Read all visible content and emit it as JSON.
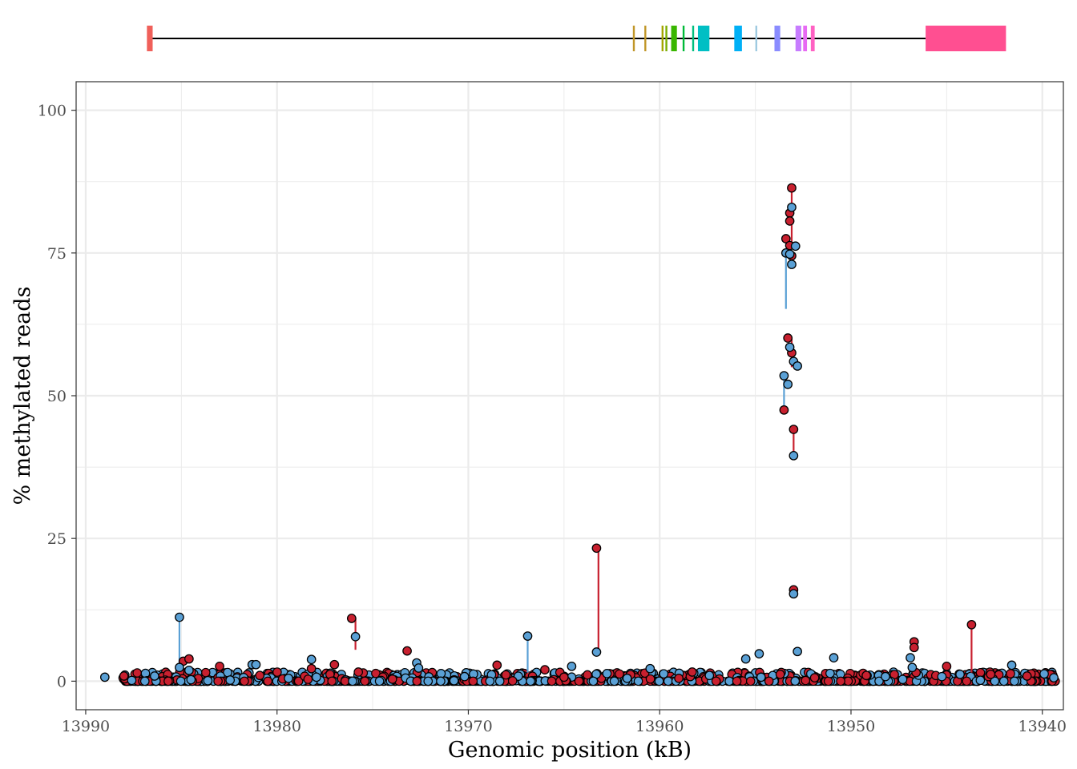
{
  "chart_data": {
    "type": "scatter",
    "title": "",
    "xlabel": "Genomic position (kB)",
    "ylabel": "% methylated reads",
    "xlim": [
      13990.5,
      13938.9
    ],
    "ylim": [
      -5,
      105
    ],
    "x_reversed": true,
    "x_ticks": [
      13990,
      13980,
      13970,
      13960,
      13950,
      13940
    ],
    "y_ticks": [
      0,
      25,
      50,
      75,
      100
    ],
    "grid": true,
    "legend": "none",
    "colors": {
      "red_series": "#c8202f",
      "blue_series": "#5aa0d5",
      "point_outline": "#000000",
      "gridline": "#ebebeb",
      "panel_border": "#333333"
    },
    "gene_track": {
      "backbone_x": [
        13986.5,
        13946.1
      ],
      "features": [
        {
          "x": [
            13986.8,
            13986.5
          ],
          "color": "#f0605a"
        },
        {
          "x": [
            13961.4,
            13961.3
          ],
          "color": "#c09628"
        },
        {
          "x": [
            13960.8,
            13960.7
          ],
          "color": "#c09628"
        },
        {
          "x": [
            13959.9,
            13959.8
          ],
          "color": "#a3a500"
        },
        {
          "x": [
            13959.7,
            13959.6
          ],
          "color": "#7aae00"
        },
        {
          "x": [
            13959.4,
            13959.1
          ],
          "color": "#39b600"
        },
        {
          "x": [
            13958.8,
            13958.7
          ],
          "color": "#00ba38"
        },
        {
          "x": [
            13958.3,
            13958.2
          ],
          "color": "#00bf7d"
        },
        {
          "x": [
            13958.0,
            13957.4
          ],
          "color": "#00bfc4"
        },
        {
          "x": [
            13956.1,
            13955.7
          ],
          "color": "#00b0f6"
        },
        {
          "x": [
            13955.0,
            13954.9
          ],
          "color": "#9ecae1"
        },
        {
          "x": [
            13954.0,
            13953.7
          ],
          "color": "#8a8cff"
        },
        {
          "x": [
            13952.9,
            13952.6
          ],
          "color": "#c77cff"
        },
        {
          "x": [
            13952.5,
            13952.3
          ],
          "color": "#e76bf3"
        },
        {
          "x": [
            13952.1,
            13951.9
          ],
          "color": "#ff61c3"
        },
        {
          "x": [
            13946.1,
            13941.9
          ],
          "color": "#ff4f91"
        }
      ]
    },
    "stems": [
      {
        "x": 13985.1,
        "from": 2.5,
        "to": 11.2,
        "color": "blue"
      },
      {
        "x": 13975.9,
        "from": 5.5,
        "to": 11.0,
        "color": "red"
      },
      {
        "x": 13966.9,
        "from": 1.5,
        "to": 7.8,
        "color": "blue"
      },
      {
        "x": 13963.2,
        "from": 5.1,
        "to": 23.3,
        "color": "red"
      },
      {
        "x": 13953.5,
        "from": 47.5,
        "to": 53.5,
        "color": "blue"
      },
      {
        "x": 13953.4,
        "from": 65.2,
        "to": 75.0,
        "color": "blue"
      },
      {
        "x": 13953.1,
        "from": 76.0,
        "to": 86.4,
        "color": "red"
      },
      {
        "x": 13953.1,
        "from": 55.0,
        "to": 60.0,
        "color": "red"
      },
      {
        "x": 13953.0,
        "from": 39.5,
        "to": 44.1,
        "color": "red"
      },
      {
        "x": 13943.7,
        "from": 1.5,
        "to": 9.9,
        "color": "red"
      }
    ],
    "series": [
      {
        "name": "",
        "color": "red",
        "points": [
          [
            13984.9,
            3.5
          ],
          [
            13984.6,
            3.9
          ],
          [
            13983.0,
            2.6
          ],
          [
            13978.2,
            2.2
          ],
          [
            13977.0,
            2.9
          ],
          [
            13973.2,
            5.3
          ],
          [
            13968.5,
            2.8
          ],
          [
            13966.0,
            2.0
          ],
          [
            13963.3,
            23.3
          ],
          [
            13958.4,
            0.8
          ],
          [
            13958.3,
            1.6
          ],
          [
            13953.7,
            1.2
          ],
          [
            13953.5,
            47.5
          ],
          [
            13953.4,
            77.5
          ],
          [
            13953.3,
            60.1
          ],
          [
            13953.2,
            82.0
          ],
          [
            13953.2,
            80.6
          ],
          [
            13953.2,
            76.3
          ],
          [
            13953.1,
            86.4
          ],
          [
            13953.1,
            57.5
          ],
          [
            13953.1,
            74.5
          ],
          [
            13953.0,
            44.1
          ],
          [
            13953.0,
            16.0
          ],
          [
            13946.7,
            6.9
          ],
          [
            13946.7,
            5.9
          ],
          [
            13946.6,
            1.5
          ],
          [
            13945.0,
            2.6
          ],
          [
            13943.7,
            9.9
          ],
          [
            13976.1,
            11.0
          ],
          [
            13980.9,
            1.0
          ],
          [
            13988.0,
            0.9
          ],
          [
            13965.0,
            0.7
          ],
          [
            13959.0,
            0.5
          ],
          [
            13951.9,
            0.6
          ],
          [
            13949.2,
            1.0
          ],
          [
            13942.7,
            1.2
          ],
          [
            13940.8,
            0.9
          ]
        ]
      },
      {
        "name": "",
        "color": "blue",
        "points": [
          [
            13985.1,
            11.2
          ],
          [
            13985.1,
            2.4
          ],
          [
            13984.6,
            1.9
          ],
          [
            13981.3,
            2.9
          ],
          [
            13981.1,
            2.9
          ],
          [
            13978.2,
            3.8
          ],
          [
            13975.9,
            7.8
          ],
          [
            13972.7,
            3.2
          ],
          [
            13972.6,
            2.3
          ],
          [
            13966.9,
            7.9
          ],
          [
            13964.6,
            2.6
          ],
          [
            13963.3,
            5.1
          ],
          [
            13960.5,
            2.2
          ],
          [
            13955.5,
            3.9
          ],
          [
            13954.8,
            4.8
          ],
          [
            13954.7,
            0.7
          ],
          [
            13953.5,
            53.5
          ],
          [
            13953.4,
            75.0
          ],
          [
            13953.3,
            52.0
          ],
          [
            13953.2,
            74.8
          ],
          [
            13953.2,
            58.5
          ],
          [
            13953.1,
            73.0
          ],
          [
            13953.1,
            83.0
          ],
          [
            13953.0,
            56.0
          ],
          [
            13953.0,
            39.5
          ],
          [
            13953.0,
            15.3
          ],
          [
            13952.9,
            76.2
          ],
          [
            13952.8,
            55.2
          ],
          [
            13952.8,
            5.2
          ],
          [
            13950.9,
            4.1
          ],
          [
            13946.9,
            4.1
          ],
          [
            13946.8,
            2.4
          ],
          [
            13941.6,
            2.8
          ],
          [
            13944.3,
            1.2
          ],
          [
            13989.0,
            0.7
          ],
          [
            13986.4,
            0.9
          ],
          [
            13979.4,
            0.5
          ],
          [
            13970.2,
            0.8
          ],
          [
            13961.7,
            0.5
          ],
          [
            13957.4,
            1.0
          ],
          [
            13948.2,
            0.8
          ],
          [
            13939.4,
            0.6
          ]
        ]
      }
    ],
    "baseline_band": {
      "x_range": [
        13988.1,
        13939.3
      ],
      "y_range": [
        0,
        1.6
      ],
      "description_points": 1200
    }
  }
}
